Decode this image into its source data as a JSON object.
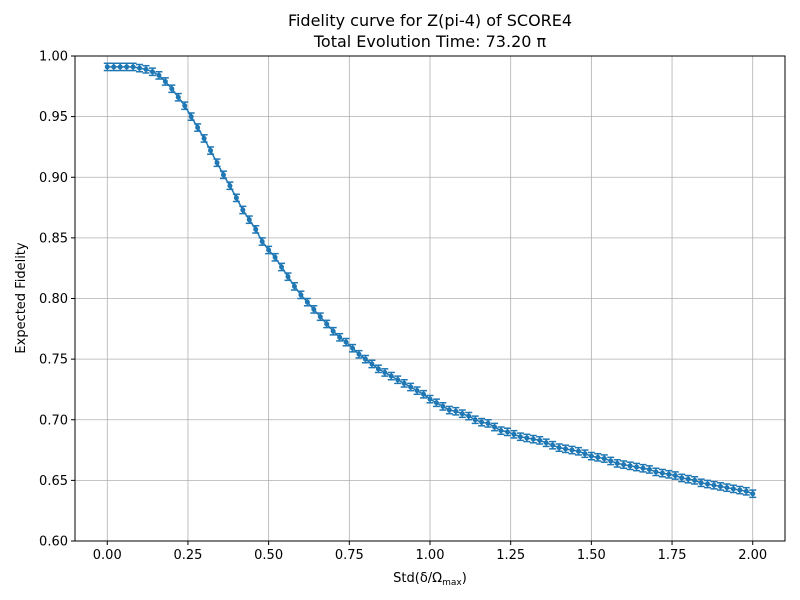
{
  "chart_data": {
    "type": "line",
    "title": "Fidelity curve for Z(pi-4) of SCORE4",
    "subtitle": "Total Evolution Time: 73.20 π",
    "xlabel": "Std(δ/Ω",
    "xlabel_sub": "max",
    "xlabel_close": ")",
    "ylabel": "Expected Fidelity",
    "xlim": [
      -0.1,
      2.1
    ],
    "ylim": [
      0.6,
      1.0
    ],
    "xticks": [
      0.0,
      0.25,
      0.5,
      0.75,
      1.0,
      1.25,
      1.5,
      1.75,
      2.0
    ],
    "xtick_labels": [
      "0.00",
      "0.25",
      "0.50",
      "0.75",
      "1.00",
      "1.25",
      "1.50",
      "1.75",
      "2.00"
    ],
    "yticks": [
      0.6,
      0.65,
      0.7,
      0.75,
      0.8,
      0.85,
      0.9,
      0.95,
      1.0
    ],
    "ytick_labels": [
      "0.60",
      "0.65",
      "0.70",
      "0.75",
      "0.80",
      "0.85",
      "0.90",
      "0.95",
      "1.00"
    ],
    "grid": true,
    "series_color": "#1f77b4",
    "error_bar": 0.003,
    "series": [
      {
        "x": [
          0.0,
          0.02,
          0.04,
          0.06,
          0.08,
          0.1,
          0.12,
          0.14,
          0.16,
          0.18,
          0.2,
          0.22,
          0.24,
          0.26,
          0.28,
          0.3,
          0.32,
          0.34,
          0.36,
          0.38,
          0.4,
          0.42,
          0.44,
          0.46,
          0.48,
          0.5,
          0.52,
          0.54,
          0.56,
          0.58,
          0.6,
          0.62,
          0.64,
          0.66,
          0.68,
          0.7,
          0.72,
          0.74,
          0.76,
          0.78,
          0.8,
          0.82,
          0.84,
          0.86,
          0.88,
          0.9,
          0.92,
          0.94,
          0.96,
          0.98,
          1.0,
          1.02,
          1.04,
          1.06,
          1.08,
          1.1,
          1.12,
          1.14,
          1.16,
          1.18,
          1.2,
          1.22,
          1.24,
          1.26,
          1.28,
          1.3,
          1.32,
          1.34,
          1.36,
          1.38,
          1.4,
          1.42,
          1.44,
          1.46,
          1.48,
          1.5,
          1.52,
          1.54,
          1.56,
          1.58,
          1.6,
          1.62,
          1.64,
          1.66,
          1.68,
          1.7,
          1.72,
          1.74,
          1.76,
          1.78,
          1.8,
          1.82,
          1.84,
          1.86,
          1.88,
          1.9,
          1.92,
          1.94,
          1.96,
          1.98,
          2.0
        ],
        "y": [
          0.991,
          0.991,
          0.991,
          0.991,
          0.991,
          0.99,
          0.989,
          0.987,
          0.984,
          0.979,
          0.973,
          0.966,
          0.959,
          0.95,
          0.941,
          0.932,
          0.922,
          0.912,
          0.902,
          0.893,
          0.883,
          0.873,
          0.865,
          0.857,
          0.847,
          0.84,
          0.834,
          0.826,
          0.818,
          0.81,
          0.803,
          0.797,
          0.791,
          0.785,
          0.779,
          0.773,
          0.768,
          0.764,
          0.759,
          0.754,
          0.75,
          0.746,
          0.742,
          0.739,
          0.736,
          0.733,
          0.73,
          0.727,
          0.724,
          0.721,
          0.717,
          0.714,
          0.711,
          0.708,
          0.707,
          0.705,
          0.703,
          0.7,
          0.698,
          0.697,
          0.694,
          0.691,
          0.69,
          0.688,
          0.686,
          0.685,
          0.684,
          0.683,
          0.681,
          0.679,
          0.677,
          0.676,
          0.675,
          0.674,
          0.672,
          0.67,
          0.669,
          0.668,
          0.666,
          0.664,
          0.663,
          0.662,
          0.661,
          0.66,
          0.659,
          0.657,
          0.656,
          0.655,
          0.654,
          0.652,
          0.651,
          0.65,
          0.648,
          0.647,
          0.646,
          0.645,
          0.644,
          0.643,
          0.642,
          0.641,
          0.639
        ]
      }
    ]
  }
}
